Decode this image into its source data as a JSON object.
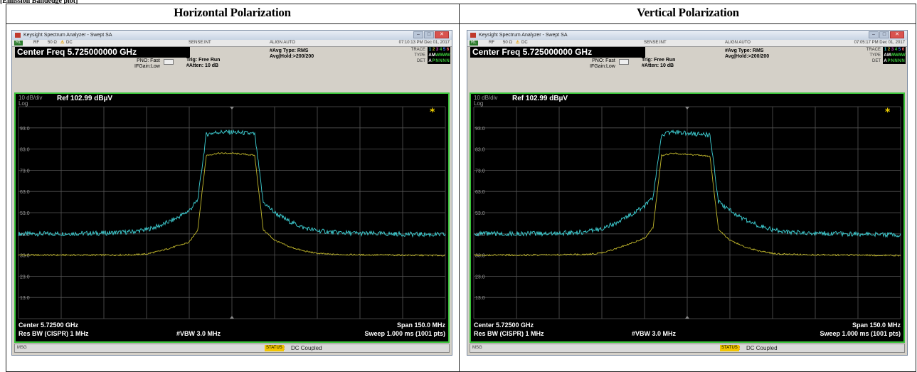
{
  "page": {
    "top_fragment": "[Emission Bandedge plot]",
    "panels": [
      {
        "title": "Horizontal Polarization"
      },
      {
        "title": "Vertical Polarization"
      }
    ]
  },
  "analyzers": [
    {
      "window_title": "Keysight Spectrum Analyzer - Swept SA",
      "status": {
        "rl": "RL",
        "rf": "RF",
        "ohm": "50 Ω",
        "dc": "DC",
        "sense": "SENSE:INT",
        "align": "ALIGN AUTO",
        "timestamp": "07:10:13 PM Dec 01, 2017"
      },
      "center_freq": "Center Freq 5.725000000 GHz",
      "pno": "PNO: Fast",
      "ifgain": "IFGain:Low",
      "trig": "Trig: Free Run",
      "atten": "#Atten: 10 dB",
      "avg_type": "#Avg Type: RMS",
      "avg_hold": "Avg|Hold:>200/200",
      "trace_label": "TRACE",
      "type_label": "TYPE",
      "det_label": "DET",
      "trace_row": [
        "1",
        "2",
        "3",
        "4",
        "5",
        "6"
      ],
      "type_row": [
        "A",
        "M",
        "W",
        "W",
        "W",
        "W"
      ],
      "det_row": [
        "A",
        "P",
        "N",
        "N",
        "N",
        "N"
      ],
      "scale": "10 dB/div",
      "log": "Log",
      "ref": "Ref 102.99 dBµV",
      "marker_star": "*",
      "center": "Center 5.72500 GHz",
      "span": "Span 150.0 MHz",
      "res_bw": "Res BW (CISPR)  1 MHz",
      "vbw": "#VBW 3.0 MHz",
      "sweep": "Sweep  1.000 ms (1001 pts)",
      "msg": "MSG",
      "status_label": "STATUS",
      "status_text": "DC Coupled"
    },
    {
      "window_title": "Keysight Spectrum Analyzer - Swept SA",
      "status": {
        "rl": "RL",
        "rf": "RF",
        "ohm": "50 Ω",
        "dc": "DC",
        "sense": "SENSE:INT",
        "align": "ALIGN AUTO",
        "timestamp": "07:05:17 PM Dec 01, 2017"
      },
      "center_freq": "Center Freq 5.725000000 GHz",
      "pno": "PNO: Fast",
      "ifgain": "IFGain:Low",
      "trig": "Trig: Free Run",
      "atten": "#Atten: 10 dB",
      "avg_type": "#Avg Type: RMS",
      "avg_hold": "Avg|Hold:>200/200",
      "trace_label": "TRACE",
      "type_label": "TYPE",
      "det_label": "DET",
      "trace_row": [
        "1",
        "2",
        "3",
        "4",
        "5",
        "6"
      ],
      "type_row": [
        "A",
        "M",
        "W",
        "W",
        "W",
        "W"
      ],
      "det_row": [
        "A",
        "P",
        "N",
        "N",
        "N",
        "N"
      ],
      "scale": "10 dB/div",
      "log": "Log",
      "ref": "Ref 102.99 dBµV",
      "marker_star": "*",
      "center": "Center 5.72500 GHz",
      "span": "Span 150.0 MHz",
      "res_bw": "Res BW (CISPR)  1 MHz",
      "vbw": "#VBW 3.0 MHz",
      "sweep": "Sweep  1.000 ms (1001 pts)",
      "msg": "MSG",
      "status_label": "STATUS",
      "status_text": "DC Coupled"
    }
  ],
  "colors": {
    "peak_trace": "#3fd2d6",
    "avg_trace": "#c2b82c",
    "graticule": "#555555",
    "frame": "#3ac43a",
    "label_white": "#ffffff",
    "label_gray": "#9a9a9a"
  },
  "chart_data": [
    {
      "type": "line",
      "panel": "Horizontal Polarization",
      "y_ticks": [
        "93.0",
        "83.0",
        "73.0",
        "63.0",
        "53.0",
        "43.0",
        "33.0",
        "23.0",
        "13.0"
      ],
      "ylim": [
        2.99,
        102.99
      ],
      "x_unit": "GHz",
      "xlim": [
        5.65,
        5.8
      ],
      "series": [
        {
          "x": [
            5.65,
            5.66,
            5.67,
            5.68,
            5.69,
            5.695,
            5.7,
            5.705,
            5.71,
            5.713,
            5.716,
            5.72,
            5.725,
            5.73,
            5.733,
            5.736,
            5.74,
            5.745,
            5.75,
            5.755,
            5.76,
            5.77,
            5.78,
            5.79,
            5.8
          ],
          "values": [
            43,
            43,
            43.2,
            43.3,
            44,
            45,
            47,
            50,
            54,
            59,
            90,
            91,
            91,
            90.5,
            90,
            58,
            53,
            49,
            46,
            44.5,
            43.8,
            43.2,
            43,
            42.8,
            42.6
          ]
        },
        {
          "x": [
            5.65,
            5.66,
            5.67,
            5.68,
            5.69,
            5.695,
            5.7,
            5.705,
            5.71,
            5.713,
            5.716,
            5.72,
            5.725,
            5.73,
            5.733,
            5.736,
            5.74,
            5.745,
            5.75,
            5.755,
            5.76,
            5.77,
            5.78,
            5.79,
            5.8
          ],
          "values": [
            33,
            33,
            33,
            33,
            33.1,
            33.5,
            35,
            37,
            39,
            45,
            80,
            81,
            81,
            80.5,
            80,
            45,
            40,
            37,
            35,
            33.8,
            33.3,
            33.1,
            33,
            32.9,
            32.8
          ]
        }
      ]
    },
    {
      "type": "line",
      "panel": "Vertical Polarization",
      "y_ticks": [
        "93.0",
        "83.0",
        "73.0",
        "63.0",
        "53.0",
        "43.0",
        "33.0",
        "23.0",
        "13.0"
      ],
      "ylim": [
        2.99,
        102.99
      ],
      "x_unit": "GHz",
      "xlim": [
        5.65,
        5.8
      ],
      "series": [
        {
          "x": [
            5.65,
            5.66,
            5.67,
            5.68,
            5.69,
            5.695,
            5.7,
            5.705,
            5.71,
            5.713,
            5.716,
            5.72,
            5.725,
            5.73,
            5.733,
            5.736,
            5.74,
            5.745,
            5.75,
            5.755,
            5.76,
            5.77,
            5.78,
            5.79,
            5.8
          ],
          "values": [
            43,
            43,
            43.1,
            43.3,
            44,
            45.5,
            48,
            52,
            56,
            60,
            90,
            91,
            90.5,
            90,
            89.5,
            58,
            54,
            50,
            47,
            45,
            44,
            43.3,
            43,
            42.8,
            42.6
          ]
        },
        {
          "x": [
            5.65,
            5.66,
            5.67,
            5.68,
            5.69,
            5.695,
            5.7,
            5.705,
            5.71,
            5.713,
            5.716,
            5.72,
            5.725,
            5.73,
            5.733,
            5.736,
            5.74,
            5.745,
            5.75,
            5.755,
            5.76,
            5.77,
            5.78,
            5.79,
            5.8
          ],
          "values": [
            33,
            33,
            33,
            33.1,
            33.3,
            34,
            36,
            38.5,
            41,
            46,
            80,
            81,
            80.5,
            80,
            79.5,
            45,
            40,
            37,
            35,
            33.8,
            33.3,
            33.1,
            33,
            32.9,
            32.8
          ]
        }
      ]
    }
  ]
}
